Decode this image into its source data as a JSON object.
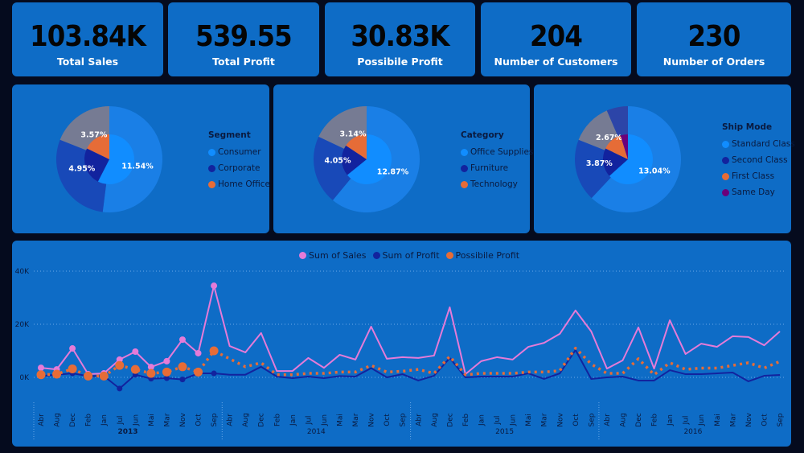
{
  "kpis": [
    {
      "value": "103.84K",
      "label": "Total Sales"
    },
    {
      "value": "539.55",
      "label": "Total Profit"
    },
    {
      "value": "30.83K",
      "label": "Possibile Profit"
    },
    {
      "value": "204",
      "label": "Number of Customers"
    },
    {
      "value": "230",
      "label": "Number of Orders"
    }
  ],
  "colors": {
    "background": "#050b1e",
    "panel": "#0e6cc6",
    "light_blue": "#118dff",
    "mid_blue": "#1849b8",
    "navy": "#12239e",
    "orange": "#e66c37",
    "gray": "#767b93",
    "purple": "#6b007b",
    "slate_blue": "#2c45a8",
    "sales_line": "#e57bd8",
    "profit_line": "#12239e",
    "possible_line": "#e66c37"
  },
  "donuts": [
    {
      "legend_title": "Segment",
      "legend": [
        {
          "label": "Consumer",
          "color": "#118dff"
        },
        {
          "label": "Corporate",
          "color": "#12239e"
        },
        {
          "label": "Home Office",
          "color": "#e66c37"
        }
      ],
      "outer_shares_pct": [
        {
          "value": 52,
          "color": "#1a7fe6"
        },
        {
          "value": 29,
          "color": "#1849b8"
        },
        {
          "value": 19,
          "color": "#767b93"
        }
      ],
      "inner": [
        {
          "label": "11.54%",
          "value": 11.54,
          "color": "#118dff"
        },
        {
          "label": "4.95%",
          "value": 4.95,
          "color": "#12239e"
        },
        {
          "label": "3.57%",
          "value": 3.57,
          "color": "#e66c37"
        }
      ]
    },
    {
      "legend_title": "Category",
      "legend": [
        {
          "label": "Office Supplies",
          "color": "#118dff"
        },
        {
          "label": "Furniture",
          "color": "#12239e"
        },
        {
          "label": "Technology",
          "color": "#e66c37"
        }
      ],
      "outer_shares_pct": [
        {
          "value": 61,
          "color": "#1a7fe6"
        },
        {
          "value": 21,
          "color": "#1849b8"
        },
        {
          "value": 18,
          "color": "#767b93"
        }
      ],
      "inner": [
        {
          "label": "12.87%",
          "value": 12.87,
          "color": "#118dff"
        },
        {
          "label": "4.05%",
          "value": 4.05,
          "color": "#12239e"
        },
        {
          "label": "3.14%",
          "value": 3.14,
          "color": "#e66c37"
        }
      ]
    },
    {
      "legend_title": "Ship Mode",
      "legend": [
        {
          "label": "Standard Class",
          "color": "#118dff"
        },
        {
          "label": "Second Class",
          "color": "#12239e"
        },
        {
          "label": "First Class",
          "color": "#e66c37"
        },
        {
          "label": "Same Day",
          "color": "#6b007b"
        }
      ],
      "outer_shares_pct": [
        {
          "value": 62,
          "color": "#1a7fe6"
        },
        {
          "value": 19,
          "color": "#1849b8"
        },
        {
          "value": 12.5,
          "color": "#767b93"
        },
        {
          "value": 6.5,
          "color": "#2c45a8"
        }
      ],
      "inner": [
        {
          "label": "13.04%",
          "value": 13.04,
          "color": "#118dff"
        },
        {
          "label": "3.87%",
          "value": 3.87,
          "color": "#12239e"
        },
        {
          "label": "2.67%",
          "value": 2.67,
          "color": "#e66c37"
        },
        {
          "label": "",
          "value": 1.0,
          "color": "#6b007b"
        }
      ]
    }
  ],
  "chart_data": {
    "type": "line",
    "legend_position": "top-center",
    "grid": true,
    "ylim": [
      -5,
      40
    ],
    "yticks": [
      "0K",
      "20K",
      "40K"
    ],
    "ytick_values": [
      0,
      20,
      40
    ],
    "years": [
      "2013",
      "2014",
      "2015",
      "2016"
    ],
    "months": [
      "Abr",
      "Aug",
      "Dec",
      "Feb",
      "Jan",
      "Jul",
      "Jun",
      "Mai",
      "Mar",
      "Nov",
      "Oct",
      "Sep"
    ],
    "series": [
      {
        "name": "Sum of Sales",
        "color": "#e57bd8",
        "dashed": false,
        "values": [
          3.6,
          3.0,
          10.9,
          1.2,
          1.5,
          6.7,
          9.7,
          3.9,
          6.1,
          14.2,
          9.1,
          34.5,
          11.8,
          9.4,
          16.7,
          2.4,
          2.4,
          7.3,
          3.6,
          8.5,
          6.7,
          19.1,
          7.0,
          7.6,
          7.3,
          8.2,
          26.4,
          1.2,
          6.1,
          7.6,
          6.7,
          11.5,
          13.0,
          16.4,
          25.2,
          17.3,
          3.3,
          6.4,
          18.8,
          3.3,
          21.5,
          8.8,
          12.7,
          11.5,
          15.5,
          15.2,
          12.1,
          17.3
        ]
      },
      {
        "name": "Sum of Profit",
        "color": "#12239e",
        "dashed": false,
        "values": [
          0.5,
          1.0,
          1.5,
          0.5,
          0.5,
          -4.2,
          1.0,
          -0.5,
          -0.3,
          -0.8,
          1.5,
          1.5,
          1.0,
          1.0,
          4.0,
          0.3,
          -0.3,
          0.3,
          -0.3,
          0.5,
          0.3,
          3.5,
          0.0,
          1.2,
          -1.2,
          0.6,
          7.3,
          0.0,
          0.3,
          0.3,
          0.3,
          1.5,
          -0.6,
          1.5,
          10.3,
          -0.6,
          0.0,
          0.3,
          -1.2,
          -1.2,
          2.7,
          1.2,
          1.2,
          1.5,
          1.8,
          -1.5,
          0.6,
          0.9
        ]
      },
      {
        "name": "Possibile Profit",
        "color": "#e66c37",
        "dashed": true,
        "values": [
          1.0,
          1.2,
          3.2,
          0.5,
          0.5,
          4.5,
          3.0,
          1.5,
          2.0,
          4.0,
          2.0,
          10.0,
          7.0,
          4.0,
          5.5,
          1.0,
          1.0,
          1.5,
          1.5,
          2.0,
          2.0,
          4.5,
          2.0,
          2.3,
          3.0,
          1.5,
          7.9,
          1.0,
          1.5,
          1.5,
          1.5,
          2.0,
          2.0,
          2.5,
          11.0,
          5.0,
          1.5,
          1.5,
          7.0,
          1.0,
          5.5,
          3.0,
          3.5,
          3.5,
          4.5,
          5.5,
          3.5,
          6.0
        ]
      }
    ]
  }
}
